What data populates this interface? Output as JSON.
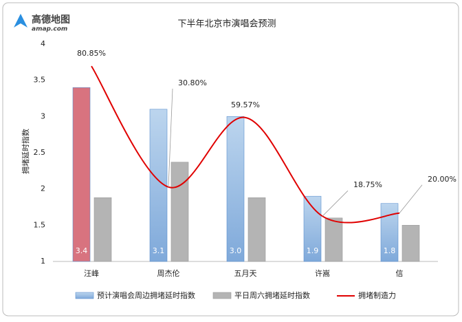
{
  "chart_data": {
    "type": "bar-line",
    "brand": "高德地图",
    "brand_url": "amap.com",
    "title": "下半年北京市演唱会预测",
    "y_label": "拥堵延时指数",
    "categories": [
      "汪峰",
      "周杰伦",
      "五月天",
      "许嵩",
      "信"
    ],
    "ylim": [
      1,
      4
    ],
    "yticks": [
      1,
      1.5,
      2,
      2.5,
      3,
      3.5,
      4
    ],
    "y2lim": [
      0,
      90
    ],
    "series": [
      {
        "name": "预计演唱会周边拥堵延时指数",
        "type": "bar",
        "color": "#9dc3e6",
        "colors": [
          "#d8737f",
          "#9dc3e6",
          "#9dc3e6",
          "#9dc3e6",
          "#9dc3e6"
        ],
        "values": [
          3.4,
          3.1,
          3.0,
          1.9,
          1.8
        ],
        "value_labels": [
          "3.4",
          "3.1",
          "3.0",
          "1.9",
          "1.8"
        ]
      },
      {
        "name": "平日周六拥堵延时指数",
        "type": "bar",
        "color": "#b4b4b4",
        "values": [
          1.88,
          2.37,
          1.88,
          1.6,
          1.5
        ]
      },
      {
        "name": "拥堵制造力",
        "type": "line",
        "axis": "y2",
        "color": "#e00000",
        "values": [
          80.85,
          30.8,
          59.57,
          18.75,
          20.0
        ],
        "value_labels": [
          "80.85%",
          "30.80%",
          "59.57%",
          "18.75%",
          "20.00%"
        ]
      }
    ]
  }
}
